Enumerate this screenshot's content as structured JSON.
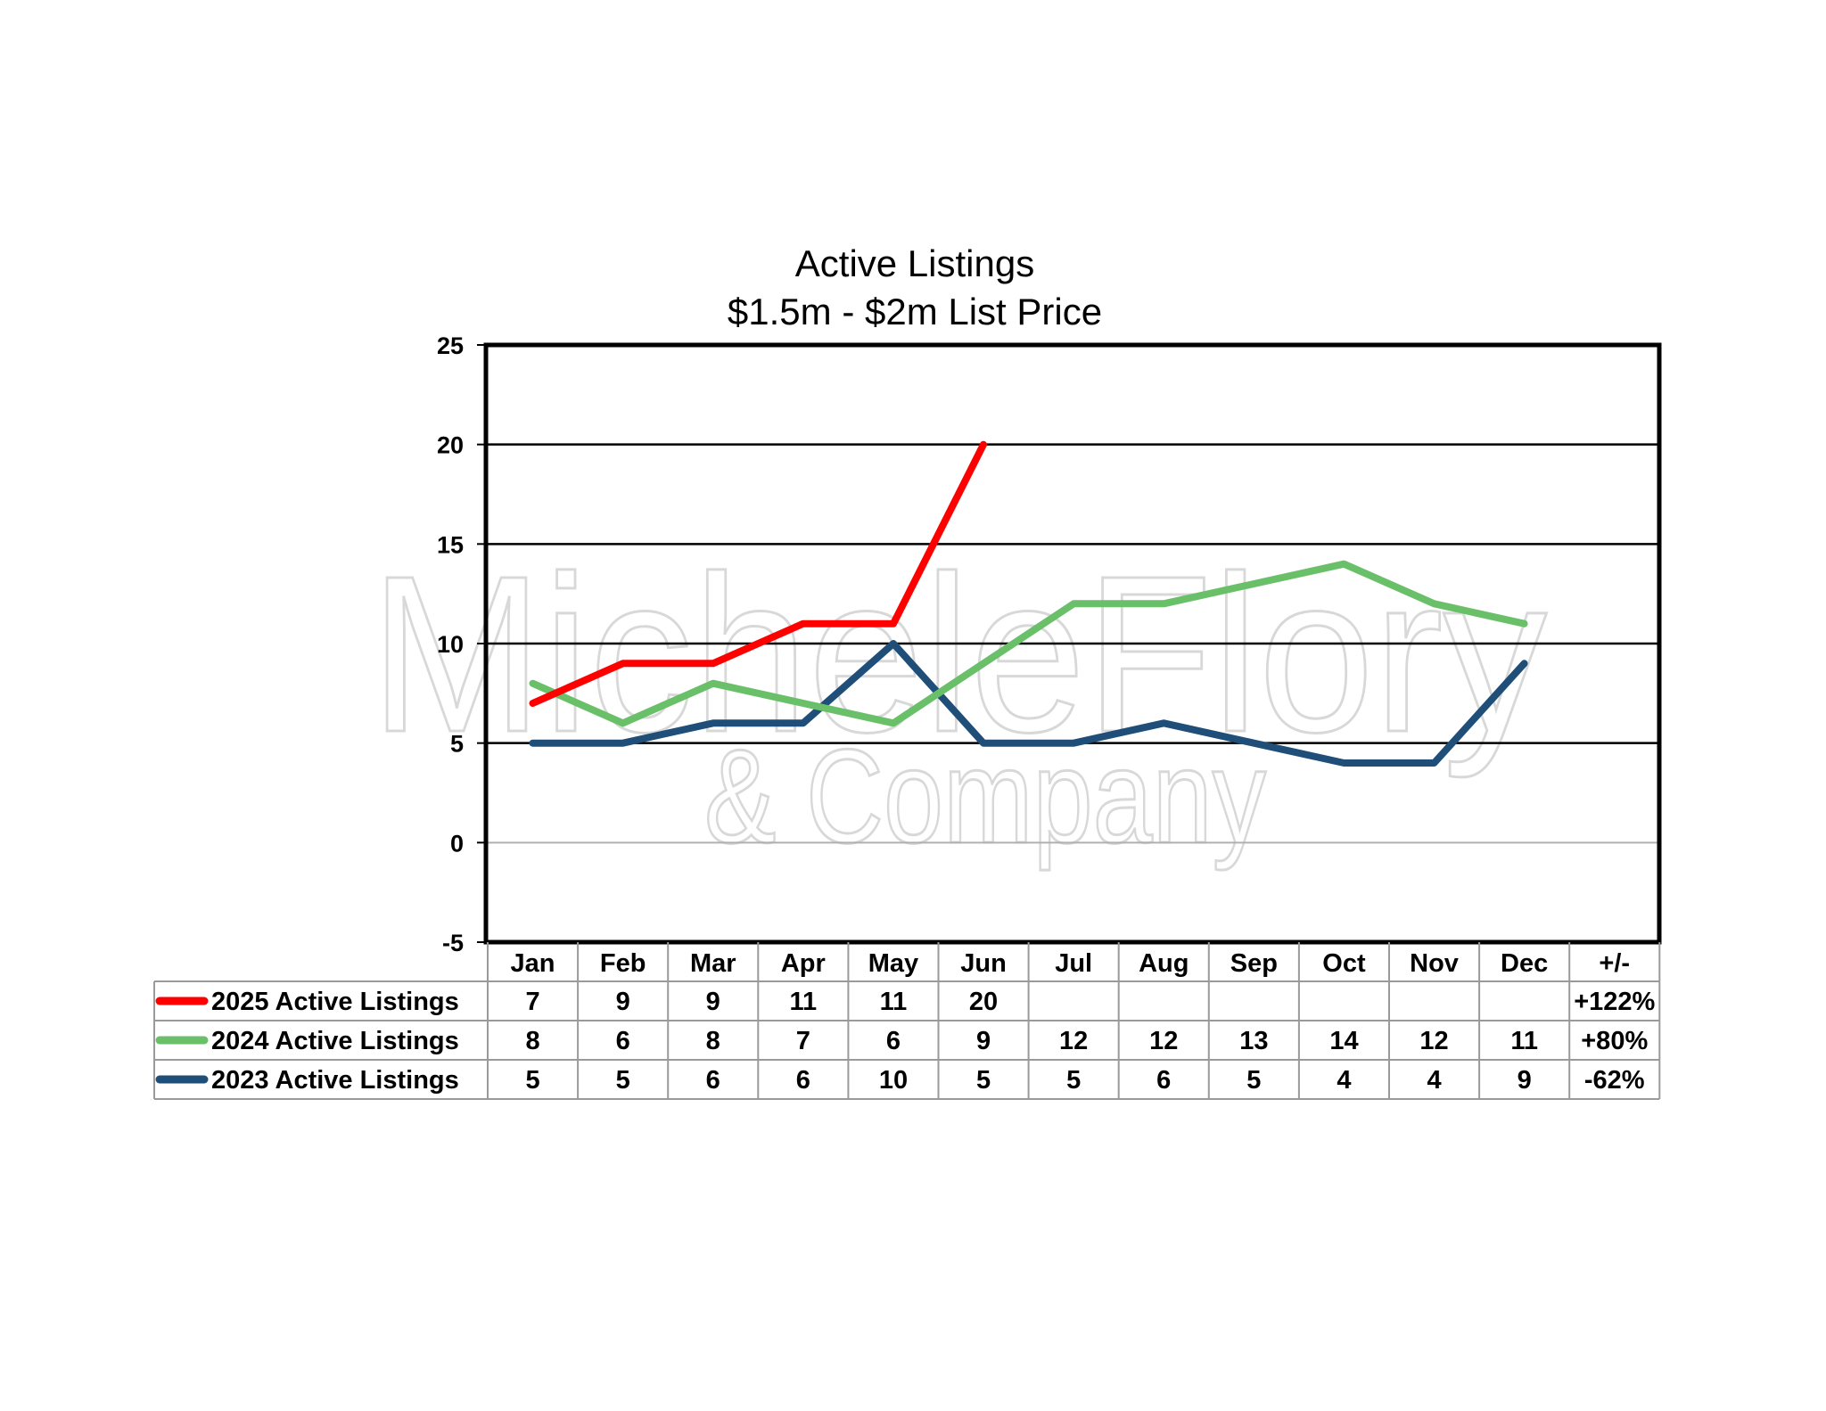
{
  "chart_data": {
    "type": "line",
    "title": "Active Listings",
    "subtitle": "$1.5m - $2m List Price",
    "categories": [
      "Jan",
      "Feb",
      "Mar",
      "Apr",
      "May",
      "Jun",
      "Jul",
      "Aug",
      "Sep",
      "Oct",
      "Nov",
      "Dec"
    ],
    "change_header": "+/-",
    "ylim": [
      -5,
      25
    ],
    "yticks": [
      -5,
      0,
      5,
      10,
      15,
      20,
      25
    ],
    "grid": true,
    "series": [
      {
        "name": "2025 Active Listings",
        "color": "#ff0000",
        "values": [
          7,
          9,
          9,
          11,
          11,
          20,
          null,
          null,
          null,
          null,
          null,
          null
        ],
        "change": "+122%"
      },
      {
        "name": "2024 Active Listings",
        "color": "#6abf69",
        "values": [
          8,
          6,
          8,
          7,
          6,
          9,
          12,
          12,
          13,
          14,
          12,
          11
        ],
        "change": "+80%"
      },
      {
        "name": "2023 Active Listings",
        "color": "#1f4e79",
        "values": [
          5,
          5,
          6,
          6,
          10,
          5,
          5,
          6,
          5,
          4,
          4,
          9
        ],
        "change": "-62%"
      }
    ]
  },
  "watermark": {
    "line1": "MicheleFlory",
    "line2": "& Company"
  }
}
